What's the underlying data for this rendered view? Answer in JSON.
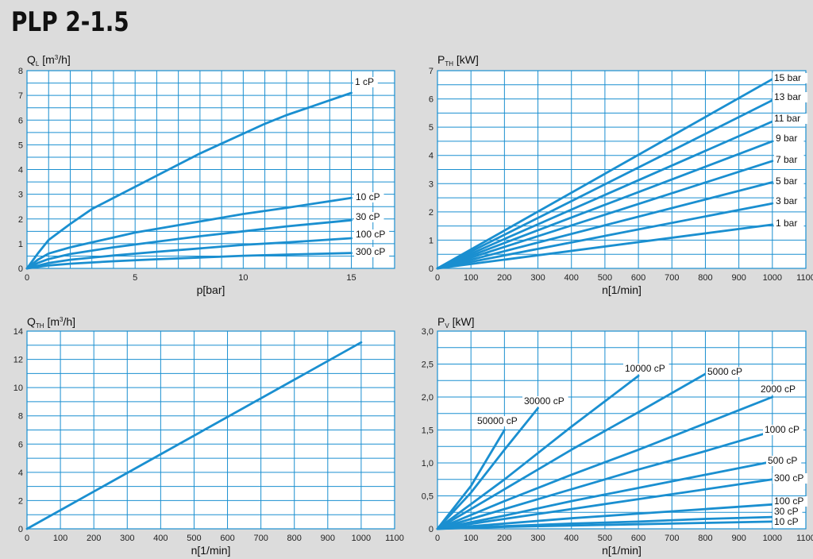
{
  "page": {
    "title": "PLP 2-1.5"
  },
  "colors": {
    "line": "#1a8fd0",
    "grid": "#1a8fd0",
    "background": "#dcdcdc",
    "plot_bg": "#ffffff",
    "label_bg": "#ffffff"
  },
  "chart_data": [
    {
      "type": "line",
      "id": "ql",
      "ylabel": {
        "main": "Q",
        "sub": "L",
        "rest": " [m",
        "sup": "3",
        "tail": "/h]"
      },
      "xlabel": "p[bar]",
      "xlim": [
        0,
        17
      ],
      "ylim": [
        0,
        8
      ],
      "xticks": [
        0,
        5,
        10,
        15
      ],
      "xtick_labels": [
        "0",
        "5",
        "10",
        "15"
      ],
      "yticks": [
        0,
        1,
        2,
        3,
        4,
        5,
        6,
        7,
        8
      ],
      "ytick_labels": [
        "0",
        "1",
        "2",
        "3",
        "4",
        "5",
        "6",
        "7",
        "8"
      ],
      "xgrid": [
        0,
        1,
        2,
        3,
        4,
        5,
        6,
        7,
        8,
        9,
        10,
        11,
        12,
        13,
        14,
        15,
        16,
        17
      ],
      "ygrid": [
        0,
        0.5,
        1,
        1.5,
        2,
        2.5,
        3,
        3.5,
        4,
        4.5,
        5,
        5.5,
        6,
        6.5,
        7,
        7.5,
        8
      ],
      "series": [
        {
          "name": "1 cP",
          "x": [
            0,
            0.5,
            1,
            2,
            3,
            4,
            5,
            6,
            7,
            8,
            9,
            10,
            11,
            12,
            13,
            14,
            15
          ],
          "y": [
            0,
            0.6,
            1.15,
            1.8,
            2.4,
            2.85,
            3.3,
            3.75,
            4.2,
            4.65,
            5.05,
            5.45,
            5.85,
            6.2,
            6.5,
            6.8,
            7.1
          ]
        },
        {
          "name": "10 cP",
          "x": [
            0,
            0.5,
            1,
            2,
            3,
            4,
            5,
            6,
            8,
            10,
            12,
            15
          ],
          "y": [
            0,
            0.35,
            0.6,
            0.85,
            1.05,
            1.25,
            1.45,
            1.6,
            1.9,
            2.2,
            2.45,
            2.85
          ]
        },
        {
          "name": "30 cP",
          "x": [
            0,
            0.5,
            1,
            2,
            3,
            4,
            6,
            8,
            10,
            12,
            15
          ],
          "y": [
            0,
            0.22,
            0.38,
            0.58,
            0.72,
            0.85,
            1.08,
            1.3,
            1.5,
            1.7,
            1.95
          ]
        },
        {
          "name": "100 cP",
          "x": [
            0,
            1,
            2,
            4,
            6,
            8,
            10,
            12,
            15
          ],
          "y": [
            0,
            0.22,
            0.35,
            0.52,
            0.67,
            0.81,
            0.95,
            1.05,
            1.22
          ]
        },
        {
          "name": "300 cP",
          "x": [
            0,
            1,
            2,
            4,
            6,
            8,
            10,
            12,
            15
          ],
          "y": [
            0,
            0.12,
            0.19,
            0.29,
            0.37,
            0.44,
            0.51,
            0.56,
            0.62
          ]
        }
      ]
    },
    {
      "type": "line",
      "id": "pth",
      "ylabel": {
        "main": "P",
        "sub": "TH",
        "rest": " [kW]",
        "sup": "",
        "tail": ""
      },
      "xlabel": "n[1/min]",
      "xlim": [
        0,
        1100
      ],
      "ylim": [
        0,
        7
      ],
      "xticks": [
        0,
        100,
        200,
        300,
        400,
        500,
        600,
        700,
        800,
        900,
        1000,
        1100
      ],
      "xtick_labels": [
        "0",
        "100",
        "200",
        "300",
        "400",
        "500",
        "600",
        "700",
        "800",
        "900",
        "1000",
        "1100"
      ],
      "yticks": [
        0,
        1,
        2,
        3,
        4,
        5,
        6,
        7
      ],
      "ytick_labels": [
        "0",
        "1",
        "2",
        "3",
        "4",
        "5",
        "6",
        "7"
      ],
      "xgrid": [
        0,
        100,
        200,
        300,
        400,
        500,
        600,
        700,
        800,
        900,
        1000,
        1100
      ],
      "ygrid": [
        0,
        0.5,
        1,
        1.5,
        2,
        2.5,
        3,
        3.5,
        4,
        4.5,
        5,
        5.5,
        6,
        6.5,
        7
      ],
      "series": [
        {
          "name": "15 bar",
          "x": [
            0,
            1000
          ],
          "y": [
            0,
            6.7
          ]
        },
        {
          "name": "13 bar",
          "x": [
            0,
            1000
          ],
          "y": [
            0,
            5.95
          ]
        },
        {
          "name": "11 bar",
          "x": [
            0,
            1000
          ],
          "y": [
            0,
            5.2
          ]
        },
        {
          "name": "9 bar",
          "x": [
            0,
            1000
          ],
          "y": [
            0,
            4.5
          ]
        },
        {
          "name": "7 bar",
          "x": [
            0,
            1000
          ],
          "y": [
            0,
            3.8
          ]
        },
        {
          "name": "5 bar",
          "x": [
            0,
            1000
          ],
          "y": [
            0,
            3.05
          ]
        },
        {
          "name": "3 bar",
          "x": [
            0,
            1000
          ],
          "y": [
            0,
            2.3
          ]
        },
        {
          "name": "1 bar",
          "x": [
            0,
            1000
          ],
          "y": [
            0,
            1.55
          ]
        }
      ]
    },
    {
      "type": "line",
      "id": "qth",
      "ylabel": {
        "main": "Q",
        "sub": "TH",
        "rest": " [m",
        "sup": "3",
        "tail": "/h]"
      },
      "xlabel": "n[1/min]",
      "xlim": [
        0,
        1100
      ],
      "ylim": [
        0,
        14
      ],
      "xticks": [
        0,
        100,
        200,
        300,
        400,
        500,
        600,
        700,
        800,
        900,
        1000,
        1100
      ],
      "xtick_labels": [
        "0",
        "100",
        "200",
        "300",
        "400",
        "500",
        "600",
        "700",
        "800",
        "900",
        "1000",
        "1100"
      ],
      "yticks": [
        0,
        2,
        4,
        6,
        8,
        10,
        12,
        14
      ],
      "ytick_labels": [
        "0",
        "2",
        "4",
        "6",
        "8",
        "10",
        "12",
        "14"
      ],
      "xgrid": [
        0,
        100,
        200,
        300,
        400,
        500,
        600,
        700,
        800,
        900,
        1000,
        1100
      ],
      "ygrid": [
        0,
        1,
        2,
        3,
        4,
        5,
        6,
        7,
        8,
        9,
        10,
        11,
        12,
        13,
        14
      ],
      "series": [
        {
          "name": "",
          "x": [
            0,
            1000
          ],
          "y": [
            0,
            13.2
          ]
        }
      ]
    },
    {
      "type": "line",
      "id": "pv",
      "ylabel": {
        "main": "P",
        "sub": "V",
        "rest": " [kW]",
        "sup": "",
        "tail": ""
      },
      "xlabel": "n[1/min]",
      "xlim": [
        0,
        1100
      ],
      "ylim": [
        0,
        3
      ],
      "xticks": [
        0,
        100,
        200,
        300,
        400,
        500,
        600,
        700,
        800,
        900,
        1000,
        1100
      ],
      "xtick_labels": [
        "0",
        "100",
        "200",
        "300",
        "400",
        "500",
        "600",
        "700",
        "800",
        "900",
        "1000",
        "1100"
      ],
      "yticks": [
        0,
        0.5,
        1,
        1.5,
        2,
        2.5,
        3
      ],
      "ytick_labels": [
        "0",
        "0,5",
        "1,0",
        "1,5",
        "2,0",
        "2,5",
        "3,0"
      ],
      "xgrid": [
        0,
        100,
        200,
        300,
        400,
        500,
        600,
        700,
        800,
        900,
        1000,
        1100
      ],
      "ygrid": [
        0,
        0.25,
        0.5,
        0.75,
        1,
        1.25,
        1.5,
        1.75,
        2,
        2.25,
        2.5,
        2.75,
        3
      ],
      "series": [
        {
          "name": "50000 cP",
          "x": [
            0,
            100,
            200
          ],
          "y": [
            0,
            0.65,
            1.5
          ]
        },
        {
          "name": "30000 cP",
          "x": [
            0,
            100,
            200,
            300
          ],
          "y": [
            0,
            0.55,
            1.2,
            1.83
          ]
        },
        {
          "name": "10000 cP",
          "x": [
            0,
            200,
            400,
            600
          ],
          "y": [
            0,
            0.75,
            1.55,
            2.32
          ]
        },
        {
          "name": "5000 cP",
          "x": [
            0,
            200,
            400,
            600,
            800
          ],
          "y": [
            0,
            0.6,
            1.2,
            1.77,
            2.35
          ]
        },
        {
          "name": "2000 cP",
          "x": [
            0,
            200,
            400,
            600,
            800,
            1000
          ],
          "y": [
            0,
            0.42,
            0.82,
            1.2,
            1.6,
            2.0
          ]
        },
        {
          "name": "1000 cP",
          "x": [
            0,
            200,
            400,
            600,
            800,
            1000
          ],
          "y": [
            0,
            0.3,
            0.6,
            0.9,
            1.18,
            1.48
          ]
        },
        {
          "name": "500 cP",
          "x": [
            0,
            200,
            400,
            600,
            800,
            1000
          ],
          "y": [
            0,
            0.2,
            0.42,
            0.62,
            0.82,
            1.02
          ]
        },
        {
          "name": "300 cP",
          "x": [
            0,
            200,
            400,
            600,
            800,
            1000
          ],
          "y": [
            0,
            0.15,
            0.3,
            0.45,
            0.6,
            0.75
          ]
        },
        {
          "name": "100 cP",
          "x": [
            0,
            200,
            400,
            600,
            800,
            1000
          ],
          "y": [
            0,
            0.08,
            0.16,
            0.23,
            0.3,
            0.37
          ]
        },
        {
          "name": "30 cP",
          "x": [
            0,
            200,
            400,
            600,
            800,
            1000
          ],
          "y": [
            0,
            0.04,
            0.08,
            0.11,
            0.15,
            0.18
          ]
        },
        {
          "name": "10 cP",
          "x": [
            0,
            200,
            400,
            600,
            800,
            1000
          ],
          "y": [
            0,
            0.03,
            0.05,
            0.07,
            0.09,
            0.11
          ]
        }
      ]
    }
  ]
}
